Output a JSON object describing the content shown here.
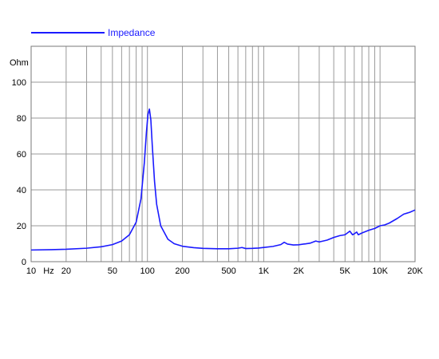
{
  "chart_data": {
    "type": "line",
    "legend": {
      "label": "Impedance",
      "position": "top-left"
    },
    "ylabel": "Ohm",
    "xunit_label": "Hz",
    "xscale": "log",
    "xlim": [
      10,
      20000
    ],
    "ylim": [
      0,
      120
    ],
    "grid": true,
    "x_tick_labels": [
      {
        "value": 10,
        "label": "10"
      },
      {
        "value": 20,
        "label": "20"
      },
      {
        "value": 50,
        "label": "50"
      },
      {
        "value": 100,
        "label": "100"
      },
      {
        "value": 200,
        "label": "200"
      },
      {
        "value": 500,
        "label": "500"
      },
      {
        "value": 1000,
        "label": "1K"
      },
      {
        "value": 2000,
        "label": "2K"
      },
      {
        "value": 5000,
        "label": "5K"
      },
      {
        "value": 10000,
        "label": "10K"
      },
      {
        "value": 20000,
        "label": "20K"
      }
    ],
    "y_tick_labels": [
      {
        "value": 0,
        "label": "0"
      },
      {
        "value": 20,
        "label": "20"
      },
      {
        "value": 40,
        "label": "40"
      },
      {
        "value": 60,
        "label": "60"
      },
      {
        "value": 80,
        "label": "80"
      },
      {
        "value": 100,
        "label": "100"
      }
    ],
    "series": [
      {
        "name": "Impedance",
        "color": "#1a1aff",
        "x": [
          10,
          15,
          20,
          30,
          40,
          50,
          60,
          70,
          80,
          88,
          94,
          98,
          101,
          104,
          107,
          110,
          115,
          120,
          130,
          150,
          170,
          200,
          250,
          300,
          400,
          500,
          600,
          650,
          700,
          800,
          900,
          1000,
          1200,
          1400,
          1500,
          1600,
          1800,
          2000,
          2500,
          2800,
          3000,
          3500,
          4000,
          4500,
          5000,
          5500,
          5800,
          6000,
          6300,
          6500,
          7000,
          8000,
          9000,
          10000,
          11000,
          12000,
          14000,
          16000,
          18000,
          20000
        ],
        "y": [
          6.5,
          6.7,
          6.9,
          7.5,
          8.3,
          9.5,
          11.5,
          15.0,
          22.0,
          35.0,
          55.0,
          72.0,
          82.0,
          85.0,
          79.0,
          65.0,
          45.0,
          32.0,
          20.0,
          12.5,
          10.0,
          8.6,
          7.8,
          7.4,
          7.2,
          7.2,
          7.5,
          7.9,
          7.3,
          7.4,
          7.6,
          7.9,
          8.5,
          9.5,
          10.8,
          9.8,
          9.3,
          9.4,
          10.3,
          11.5,
          11.0,
          12.0,
          13.5,
          14.5,
          15.0,
          17.0,
          15.0,
          15.5,
          16.5,
          15.0,
          16.0,
          17.5,
          18.5,
          20.0,
          20.5,
          21.5,
          24.0,
          26.5,
          27.5,
          28.8
        ]
      }
    ]
  }
}
